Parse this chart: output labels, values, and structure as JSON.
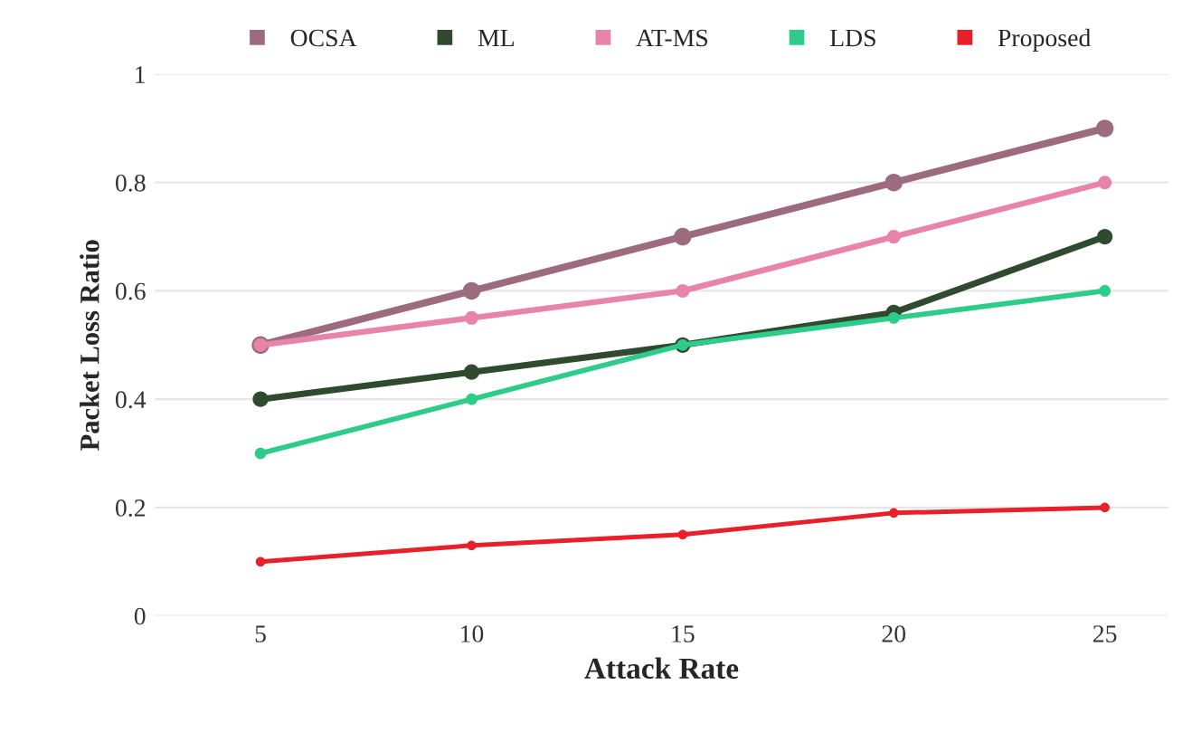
{
  "chart_data": {
    "type": "line",
    "xlabel": "Attack Rate",
    "ylabel": "Packet Loss Ratio",
    "x": [
      5,
      10,
      15,
      20,
      25
    ],
    "series": [
      {
        "name": "OCSA",
        "color": "#9c6b7e",
        "values": [
          0.5,
          0.6,
          0.7,
          0.8,
          0.9
        ]
      },
      {
        "name": "ML",
        "color": "#2f4a2f",
        "values": [
          0.4,
          0.45,
          0.5,
          0.56,
          0.7
        ]
      },
      {
        "name": "AT-MS",
        "color": "#e884a8",
        "values": [
          0.5,
          0.55,
          0.6,
          0.7,
          0.8
        ]
      },
      {
        "name": "LDS",
        "color": "#2ecc8a",
        "values": [
          0.3,
          0.4,
          0.5,
          0.55,
          0.6
        ]
      },
      {
        "name": "Proposed",
        "color": "#e8202a",
        "values": [
          0.1,
          0.13,
          0.15,
          0.19,
          0.2
        ]
      }
    ],
    "xlim": [
      2.5,
      26.5
    ],
    "ylim": [
      0,
      1
    ],
    "xticks": [
      5,
      10,
      15,
      20,
      25
    ],
    "yticks": [
      0,
      0.2,
      0.4,
      0.6,
      0.8,
      1
    ],
    "grid": "y",
    "legend": "top",
    "marker": "circle",
    "line_style": "solid"
  }
}
